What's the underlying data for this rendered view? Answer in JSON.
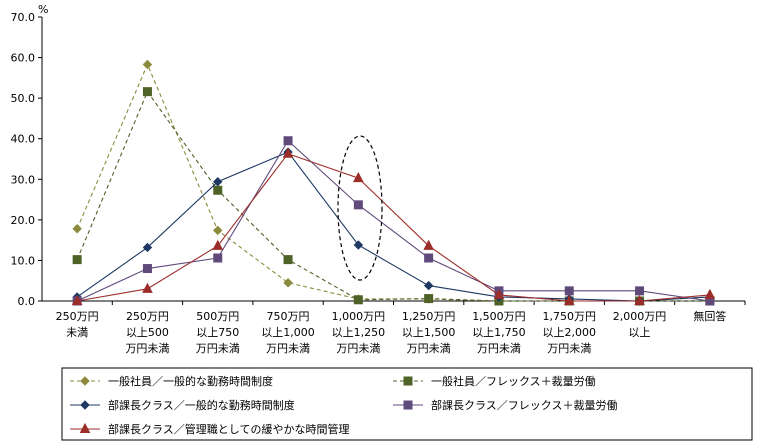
{
  "chart_data": {
    "type": "line",
    "ylabel": "%",
    "ylim": [
      0,
      70
    ],
    "yticks": [
      "0.0",
      "10.0",
      "20.0",
      "30.0",
      "40.0",
      "50.0",
      "60.0",
      "70.0"
    ],
    "grid": false,
    "legend_position": "bottom",
    "categories": [
      [
        "250万円",
        "未満"
      ],
      [
        "250万円",
        "以上500",
        "万円未満"
      ],
      [
        "500万円",
        "以上750",
        "万円未満"
      ],
      [
        "750万円",
        "以上1,000",
        "万円未満"
      ],
      [
        "1,000万円",
        "以上1,250",
        "万円未満"
      ],
      [
        "1,250万円",
        "以上1,500",
        "万円未満"
      ],
      [
        "1,500万円",
        "以上1,750",
        "万円未満"
      ],
      [
        "1,750万円",
        "以上2,000",
        "万円未満"
      ],
      [
        "2,000万円",
        "以上"
      ],
      [
        "無回答"
      ]
    ],
    "series": [
      {
        "name": "一般社員／一般的な勤務時間制度",
        "color": "#8c8a3c",
        "marker": "diamond",
        "dashed": true,
        "values": [
          17.8,
          58.3,
          17.4,
          4.5,
          0.5,
          0.5,
          0.0,
          0.0,
          0.0,
          1.0
        ]
      },
      {
        "name": "一般社員／フレックス＋裁量労働",
        "color": "#4f6228",
        "marker": "square",
        "dashed": true,
        "values": [
          10.2,
          51.6,
          27.3,
          10.2,
          0.3,
          0.6,
          0.0,
          0.0,
          0.0,
          0.0
        ]
      },
      {
        "name": "部課長クラス／一般的な勤務時間制度",
        "color": "#1f3864",
        "marker": "diamond",
        "dashed": false,
        "values": [
          1.0,
          13.2,
          29.4,
          36.7,
          13.8,
          3.8,
          1.0,
          0.5,
          0.0,
          1.0
        ]
      },
      {
        "name": "部課長クラス／フレックス＋裁量労働",
        "color": "#604a7b",
        "marker": "square",
        "dashed": false,
        "values": [
          0.0,
          8.0,
          10.6,
          39.5,
          23.7,
          10.6,
          2.5,
          2.5,
          2.5,
          0.0
        ]
      },
      {
        "name": "部課長クラス／管理職としての緩やかな時間管理",
        "color": "#9b2d2a",
        "marker": "triangle",
        "dashed": false,
        "values": [
          0.0,
          3.0,
          13.6,
          36.3,
          30.3,
          13.6,
          1.5,
          0.0,
          0.0,
          1.5
        ]
      }
    ],
    "annotation": {
      "type": "dashed-ellipse",
      "category_index": 4
    }
  }
}
